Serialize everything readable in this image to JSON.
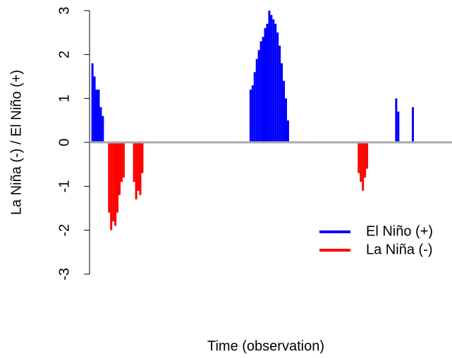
{
  "chart_data": {
    "type": "bar",
    "xlabel": "Time (observation)",
    "ylabel": "La Niña (-) / El Niño (+)",
    "xlim": [
      -0.4,
      166.7
    ],
    "ylim": [
      -3,
      3
    ],
    "yticks": [
      -3,
      -2,
      -1,
      0,
      1,
      2,
      3
    ],
    "baseline": 0,
    "baseline_color": "#aaaaaa",
    "legend": "right",
    "series": [
      {
        "name": "El Niño (+)",
        "color": "#0000ff",
        "x": [
          1,
          2,
          3,
          4,
          5,
          6,
          77,
          78,
          79,
          80,
          81,
          82,
          83,
          84,
          85,
          86,
          87,
          88,
          89,
          90,
          91,
          92,
          93,
          94,
          95,
          147,
          148,
          155
        ],
        "values": [
          1.8,
          1.5,
          1.2,
          1.2,
          0.8,
          0.6,
          1.2,
          1.3,
          1.6,
          1.9,
          2.1,
          2.3,
          2.4,
          2.6,
          2.7,
          3.0,
          2.9,
          2.8,
          2.7,
          2.5,
          2.2,
          1.8,
          1.4,
          1.0,
          0.5,
          1.0,
          0.7,
          0.8
        ]
      },
      {
        "name": "La Niña (-)",
        "color": "#ff0000",
        "x": [
          9,
          10,
          11,
          12,
          13,
          14,
          15,
          16,
          21,
          22,
          23,
          24,
          25,
          129,
          130,
          131,
          132,
          133
        ],
        "values": [
          -1.6,
          -2.0,
          -1.8,
          -1.9,
          -1.6,
          -1.2,
          -0.9,
          -0.8,
          -0.9,
          -1.3,
          -1.1,
          -1.2,
          -0.7,
          -0.7,
          -0.9,
          -1.1,
          -0.8,
          -0.6
        ]
      }
    ]
  }
}
